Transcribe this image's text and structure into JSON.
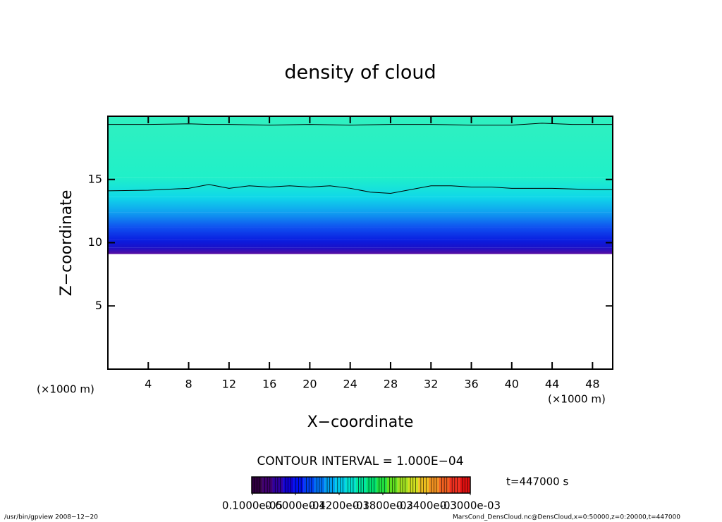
{
  "chart_data": {
    "type": "contour",
    "title": "density of cloud",
    "xlabel": "X−coordinate",
    "ylabel": "Z−coordinate",
    "xunit": "(×1000 m)",
    "yunit": "(×1000 m)",
    "xlim": [
      0,
      50
    ],
    "ylim": [
      0,
      20
    ],
    "xticks": [
      4,
      8,
      12,
      16,
      20,
      24,
      28,
      32,
      36,
      40,
      44,
      48
    ],
    "yticks": [
      5,
      10,
      15
    ],
    "field": {
      "z": [
        9.1,
        9.6,
        10.2,
        11.2,
        12.4,
        13.6,
        15.2,
        20
      ],
      "colors": [
        "#5a0ea0",
        "#1a10c8",
        "#0a1ee0",
        "#1050f0",
        "#10a0f0",
        "#10d8e8",
        "#20f0c8",
        "#30f0c0"
      ]
    },
    "series": [
      {
        "x": [
          0,
          4,
          8,
          10,
          12,
          16,
          20,
          24,
          28,
          32,
          36,
          40,
          43,
          46,
          50
        ],
        "values": [
          19.35,
          19.35,
          19.4,
          19.35,
          19.35,
          19.3,
          19.35,
          19.3,
          19.35,
          19.35,
          19.3,
          19.3,
          19.45,
          19.35,
          19.35
        ]
      },
      {
        "x": [
          0,
          4,
          8,
          10,
          12,
          14,
          16,
          18,
          20,
          22,
          24,
          26,
          28,
          30,
          32,
          34,
          36,
          38,
          40,
          42,
          44,
          46,
          48,
          50
        ],
        "values": [
          14.1,
          14.15,
          14.3,
          14.6,
          14.3,
          14.5,
          14.4,
          14.5,
          14.4,
          14.5,
          14.3,
          14.0,
          13.9,
          14.2,
          14.5,
          14.5,
          14.4,
          14.4,
          14.3,
          14.3,
          14.3,
          14.25,
          14.2,
          14.2
        ]
      }
    ],
    "line_color": "#000000",
    "contour_interval": "CONTOUR INTERVAL = 1.000E−04",
    "time_label": "t=447000 s",
    "colorbar": {
      "colors": [
        "#300040",
        "#400070",
        "#3000a0",
        "#1000d0",
        "#0010f0",
        "#0040f0",
        "#0070f0",
        "#00a0f0",
        "#00c8e8",
        "#00e0d0",
        "#00e8a0",
        "#00e070",
        "#20e040",
        "#60e020",
        "#a0e020",
        "#d0e020",
        "#f0c020",
        "#f09020",
        "#f06020",
        "#f03020",
        "#e01010"
      ],
      "labels": [
        "0.1000e-05",
        "0.6000e-04",
        "0.1200e-03",
        "0.1800e-03",
        "0.2400e-03",
        "0.3000e-03"
      ],
      "label_values": [
        1e-06,
        6e-05,
        0.00012,
        0.00018,
        0.00024,
        0.0003
      ],
      "lim": [
        0,
        0.0003
      ]
    },
    "footer_left": "/usr/bin/gpview  2008−12−20",
    "footer_right": "MarsCond_DensCloud.nc@DensCloud,x=0:50000,z=0:20000,t=447000"
  }
}
